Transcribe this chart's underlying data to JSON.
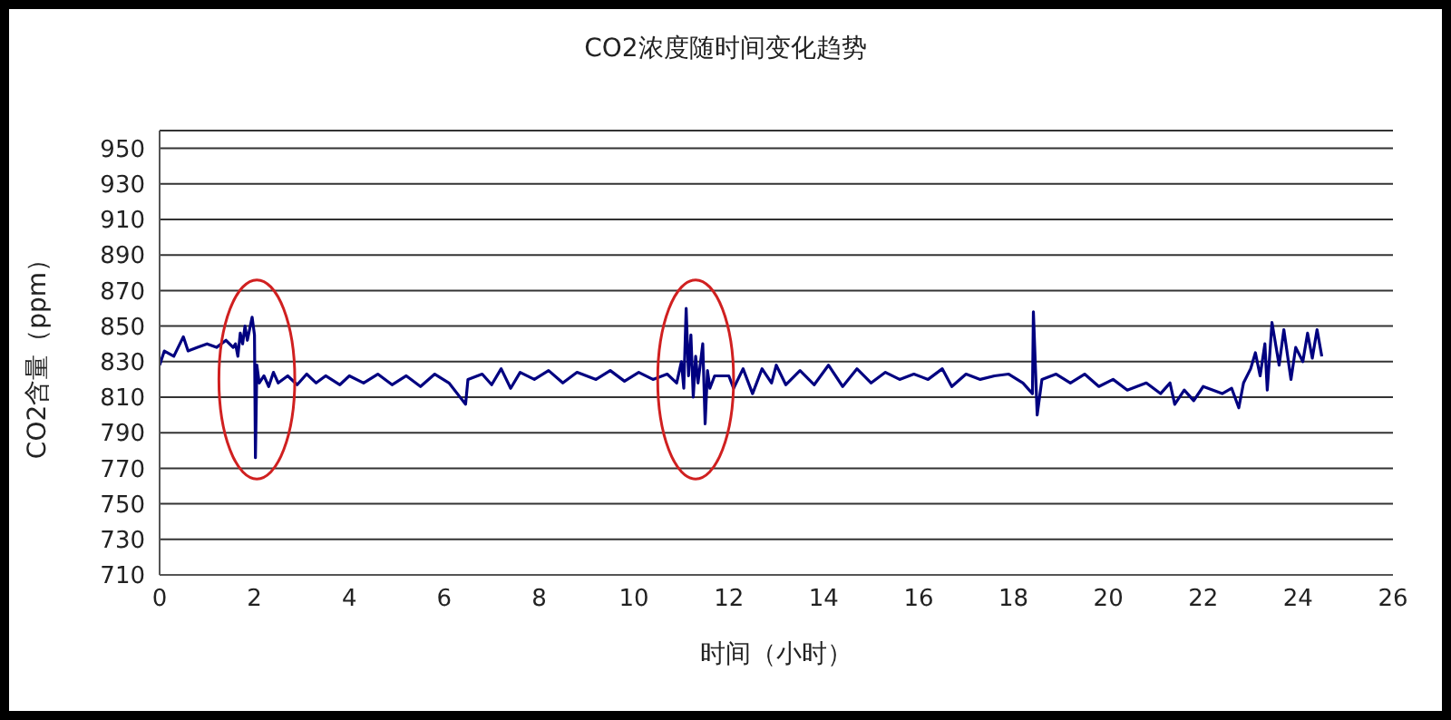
{
  "chart_data": {
    "type": "line",
    "title": "CO2浓度随时间变化趋势",
    "xlabel": "时间（小时）",
    "ylabel": "CO2含量（ppm）",
    "grid": "y",
    "legend": false,
    "marker": "none",
    "line_style": "solid",
    "xlim": [
      0,
      26
    ],
    "xticks": [
      0,
      2,
      4,
      6,
      8,
      10,
      12,
      14,
      16,
      18,
      20,
      22,
      24,
      26
    ],
    "ylim": [
      710,
      960
    ],
    "yticks": [
      710,
      730,
      750,
      770,
      790,
      810,
      830,
      850,
      870,
      890,
      910,
      930,
      950
    ],
    "series": [
      {
        "color": "#000080",
        "x": [
          0,
          0.1,
          0.3,
          0.5,
          0.6,
          0.8,
          1.0,
          1.2,
          1.4,
          1.55,
          1.6,
          1.65,
          1.7,
          1.75,
          1.8,
          1.85,
          1.95,
          2.0,
          2.02,
          2.05,
          2.1,
          2.2,
          2.3,
          2.4,
          2.5,
          2.7,
          2.9,
          3.1,
          3.3,
          3.5,
          3.8,
          4.0,
          4.3,
          4.6,
          4.9,
          5.2,
          5.5,
          5.8,
          6.1,
          6.45,
          6.5,
          6.8,
          7.0,
          7.2,
          7.4,
          7.6,
          7.9,
          8.2,
          8.5,
          8.8,
          9.2,
          9.5,
          9.8,
          10.1,
          10.4,
          10.7,
          10.9,
          11.0,
          11.05,
          11.1,
          11.15,
          11.2,
          11.25,
          11.3,
          11.35,
          11.45,
          11.5,
          11.55,
          11.6,
          11.7,
          12.0,
          12.1,
          12.3,
          12.5,
          12.7,
          12.9,
          13.0,
          13.2,
          13.5,
          13.8,
          14.1,
          14.4,
          14.7,
          15.0,
          15.3,
          15.6,
          15.9,
          16.2,
          16.5,
          16.7,
          17.0,
          17.3,
          17.6,
          17.9,
          18.2,
          18.4,
          18.42,
          18.5,
          18.6,
          18.9,
          19.2,
          19.5,
          19.8,
          20.1,
          20.4,
          20.8,
          21.1,
          21.3,
          21.4,
          21.6,
          21.8,
          22.0,
          22.4,
          22.6,
          22.75,
          22.85,
          23.0,
          23.1,
          23.2,
          23.3,
          23.35,
          23.45,
          23.6,
          23.7,
          23.85,
          23.95,
          24.1,
          24.2,
          24.3,
          24.4,
          24.5
        ],
        "values": [
          828,
          836,
          833,
          844,
          836,
          838,
          840,
          838,
          842,
          838,
          840,
          833,
          846,
          840,
          850,
          842,
          855,
          845,
          776,
          828,
          818,
          822,
          816,
          824,
          818,
          822,
          817,
          823,
          818,
          822,
          817,
          822,
          818,
          823,
          817,
          822,
          816,
          823,
          818,
          806,
          820,
          823,
          817,
          826,
          815,
          824,
          820,
          825,
          818,
          824,
          820,
          825,
          819,
          824,
          820,
          823,
          818,
          830,
          815,
          860,
          822,
          845,
          810,
          833,
          818,
          840,
          795,
          825,
          815,
          822,
          822,
          815,
          826,
          812,
          826,
          818,
          828,
          817,
          825,
          817,
          828,
          816,
          826,
          818,
          824,
          820,
          823,
          820,
          826,
          816,
          823,
          820,
          822,
          823,
          818,
          812,
          858,
          800,
          820,
          823,
          818,
          823,
          816,
          820,
          814,
          818,
          812,
          818,
          806,
          814,
          808,
          816,
          812,
          815,
          804,
          818,
          826,
          835,
          822,
          840,
          814,
          852,
          828,
          848,
          820,
          838,
          830,
          846,
          832,
          848,
          833
        ]
      }
    ]
  }
}
